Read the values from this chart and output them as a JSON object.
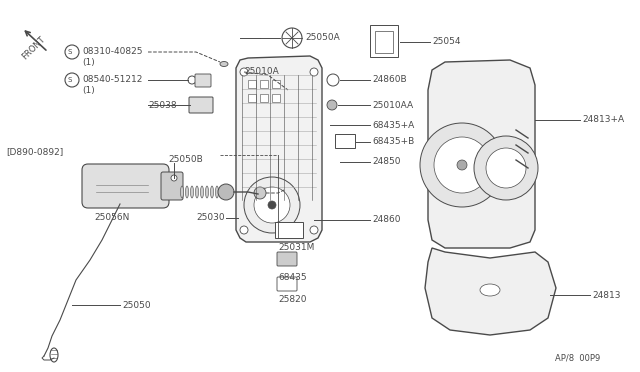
{
  "bg_color": "#ffffff",
  "lc": "#4a4a4a",
  "tc": "#4a4a4a",
  "page_ref": "AP/8  00P9",
  "figsize": [
    6.4,
    3.72
  ],
  "dpi": 100,
  "xlim": [
    0,
    640
  ],
  "ylim": [
    0,
    372
  ]
}
